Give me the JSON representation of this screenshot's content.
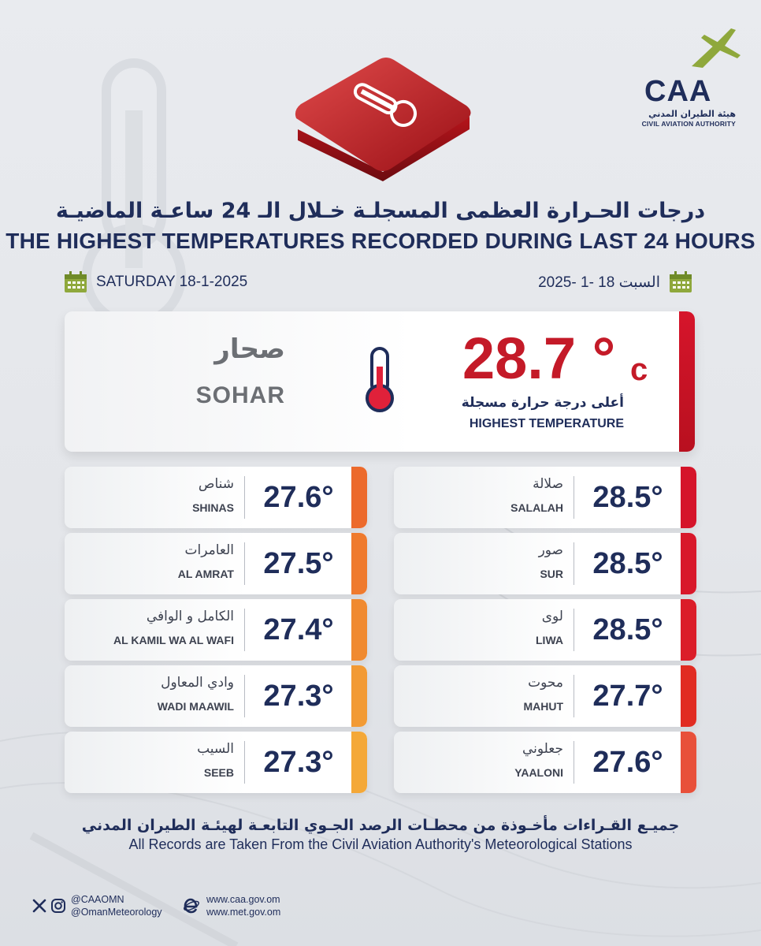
{
  "logo": {
    "abbr": "CAA",
    "name_ar": "هيئة الطيران المدني",
    "name_en": "CIVIL AVIATION AUTHORITY"
  },
  "title": {
    "ar": "درجات الحـرارة العظمى المسجلـة خـلال الـ 24 ساعـة الماضيـة",
    "en": "THE HIGHEST TEMPERATURES RECORDED DURING LAST 24 HOURS"
  },
  "date": {
    "en": "SATURDAY 18-1-2025",
    "ar": "السبت 18 -1 -2025"
  },
  "highest": {
    "city_ar": "صحار",
    "city_en": "SOHAR",
    "value": "28.7 °",
    "unit": "c",
    "label_ar": "أعلى درجة حرارة مسجلة",
    "label_en": "HIGHEST TEMPERATURE"
  },
  "stations_left": [
    {
      "name_ar": "شناص",
      "name_en": "SHINAS",
      "value": "27.6°",
      "color": "#ec6a2c"
    },
    {
      "name_ar": "العامرات",
      "name_en": "AL AMRAT",
      "value": "27.5°",
      "color": "#ef7a2d"
    },
    {
      "name_ar": "الكامل و الوافي",
      "name_en": "AL KAMIL WA AL WAFI",
      "value": "27.4°",
      "color": "#f08a30"
    },
    {
      "name_ar": "وادي المعاول",
      "name_en": "WADI MAAWIL",
      "value": "27.3°",
      "color": "#f29a34"
    },
    {
      "name_ar": "السيب",
      "name_en": "SEEB",
      "value": "27.3°",
      "color": "#f4a838"
    }
  ],
  "stations_right": [
    {
      "name_ar": "صلالة",
      "name_en": "SALALAH",
      "value": "28.5°",
      "color": "#d5142a"
    },
    {
      "name_ar": "صور",
      "name_en": "SUR",
      "value": "28.5°",
      "color": "#d8182a"
    },
    {
      "name_ar": "لوى",
      "name_en": "LIWA",
      "value": "28.5°",
      "color": "#db1d29"
    },
    {
      "name_ar": "محوت",
      "name_en": "MAHUT",
      "value": "27.7°",
      "color": "#e12c22"
    },
    {
      "name_ar": "جعلوني",
      "name_en": "YAALONI",
      "value": "27.6°",
      "color": "#e8503a"
    }
  ],
  "footer": {
    "ar": "جميـع القـراءات مأخـوذة من محطـات الرصد الجـوي التابعـة لهيئـة الطيران المدني",
    "en": "All Records are Taken From the Civil Aviation Authority's Meteorological Stations"
  },
  "social": {
    "handle1": "@CAAOMN",
    "handle2": "@OmanMeteorology",
    "icons": [
      "x-icon",
      "instagram-icon"
    ]
  },
  "web": {
    "url1": "www.caa.gov.om",
    "url2": "www.met.gov.om",
    "icon": "browser-e-icon"
  },
  "colors": {
    "navy": "#1f2d5a",
    "red": "#c41a28",
    "gray_text": "#6c6f74"
  }
}
